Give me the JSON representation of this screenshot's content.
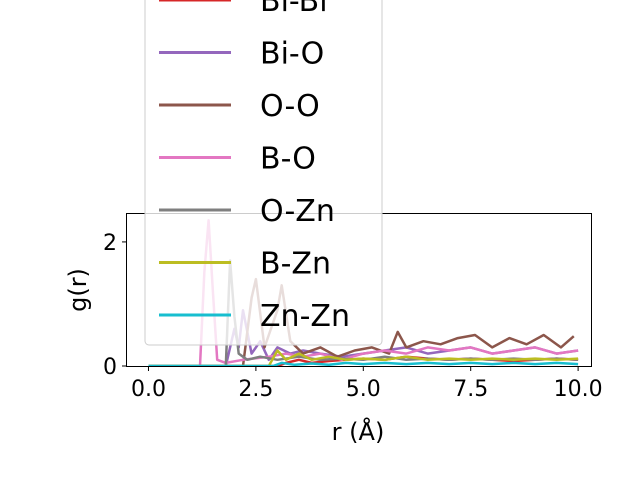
{
  "chart_data": {
    "type": "line",
    "xlabel": "r (Å)",
    "ylabel": "g(r)",
    "xlim": [
      -0.5,
      10.3
    ],
    "ylim": [
      0,
      2.45
    ],
    "xticks": [
      0.0,
      2.5,
      5.0,
      7.5,
      10.0
    ],
    "xtick_labels": [
      "0.0",
      "2.5",
      "5.0",
      "7.5",
      "10.0"
    ],
    "yticks": [
      0,
      2
    ],
    "ytick_labels": [
      "0",
      "2"
    ],
    "grid": false,
    "legend_position": "upper-left",
    "series": [
      {
        "name": "Bi-Bi",
        "color": "#d62728",
        "x": [
          0.0,
          1.0,
          2.0,
          3.0,
          3.2,
          3.5,
          3.8,
          4.2,
          4.6,
          5.0,
          5.5,
          6.0,
          6.5,
          7.0,
          7.5,
          8.0,
          8.5,
          9.0,
          9.5,
          10.0
        ],
        "y": [
          0,
          0,
          0,
          0,
          0.05,
          0.1,
          0.05,
          0.08,
          0.1,
          0.12,
          0.1,
          0.15,
          0.12,
          0.1,
          0.12,
          0.1,
          0.08,
          0.1,
          0.12,
          0.1
        ]
      },
      {
        "name": "Bi-O",
        "color": "#9467bd",
        "x": [
          0.0,
          1.8,
          2.0,
          2.1,
          2.2,
          2.4,
          2.6,
          2.8,
          3.0,
          3.3,
          3.6,
          4.0,
          4.5,
          5.0,
          5.5,
          6.0,
          6.5,
          7.0,
          7.5,
          8.0,
          8.5,
          9.0,
          9.5,
          10.0
        ],
        "y": [
          0,
          0,
          0.6,
          0.3,
          0.9,
          0.2,
          0.4,
          0.1,
          0.3,
          0.2,
          0.25,
          0.2,
          0.15,
          0.2,
          0.25,
          0.3,
          0.2,
          0.25,
          0.3,
          0.2,
          0.25,
          0.3,
          0.2,
          0.25
        ]
      },
      {
        "name": "O-O",
        "color": "#8c564b",
        "x": [
          0.0,
          2.2,
          2.4,
          2.5,
          2.7,
          3.0,
          3.1,
          3.3,
          3.6,
          4.0,
          4.4,
          4.8,
          5.2,
          5.6,
          5.8,
          6.0,
          6.4,
          6.8,
          7.2,
          7.6,
          8.0,
          8.4,
          8.8,
          9.2,
          9.6,
          9.9
        ],
        "y": [
          0,
          0,
          1.1,
          1.4,
          0.3,
          0.9,
          1.3,
          0.4,
          0.2,
          0.3,
          0.15,
          0.25,
          0.3,
          0.2,
          0.55,
          0.3,
          0.4,
          0.35,
          0.45,
          0.5,
          0.3,
          0.45,
          0.35,
          0.5,
          0.3,
          0.48
        ]
      },
      {
        "name": "B-O",
        "color": "#e377c2",
        "x": [
          0.0,
          1.2,
          1.3,
          1.4,
          1.5,
          1.6,
          1.8,
          2.2,
          2.8,
          3.2,
          3.6,
          4.0,
          4.5,
          5.0,
          5.5,
          6.0,
          6.5,
          7.0,
          7.5,
          8.0,
          8.5,
          9.0,
          9.5,
          10.0
        ],
        "y": [
          0,
          0,
          1.5,
          2.35,
          1.2,
          0.1,
          0.05,
          0.1,
          0.15,
          0.2,
          0.15,
          0.2,
          0.1,
          0.2,
          0.25,
          0.2,
          0.3,
          0.25,
          0.3,
          0.2,
          0.25,
          0.3,
          0.2,
          0.25
        ]
      },
      {
        "name": "O-Zn",
        "color": "#7f7f7f",
        "x": [
          0.0,
          1.8,
          1.9,
          2.0,
          2.1,
          2.3,
          2.6,
          3.0,
          3.5,
          4.0,
          4.5,
          5.0,
          5.5,
          6.0,
          6.5,
          7.0,
          7.5,
          8.0,
          8.5,
          9.0,
          9.5,
          10.0
        ],
        "y": [
          0,
          0,
          1.7,
          0.8,
          0.2,
          0.1,
          0.15,
          0.1,
          0.15,
          0.1,
          0.12,
          0.1,
          0.15,
          0.1,
          0.12,
          0.1,
          0.12,
          0.1,
          0.12,
          0.1,
          0.12,
          0.1
        ]
      },
      {
        "name": "B-Zn",
        "color": "#bcbd22",
        "x": [
          0.0,
          2.8,
          3.0,
          3.2,
          3.5,
          3.8,
          4.2,
          4.6,
          5.0,
          5.5,
          6.0,
          6.5,
          7.0,
          7.5,
          8.0,
          8.5,
          9.0,
          9.5,
          10.0
        ],
        "y": [
          0,
          0,
          0.25,
          0.1,
          0.2,
          0.1,
          0.15,
          0.1,
          0.12,
          0.1,
          0.15,
          0.1,
          0.12,
          0.1,
          0.12,
          0.1,
          0.12,
          0.1,
          0.12
        ]
      },
      {
        "name": "Zn-Zn",
        "color": "#17becf",
        "x": [
          0.0,
          2.9,
          3.1,
          3.4,
          3.8,
          4.2,
          4.6,
          5.0,
          5.5,
          6.0,
          6.5,
          7.0,
          7.5,
          8.0,
          8.5,
          9.0,
          9.5,
          10.0
        ],
        "y": [
          0,
          0,
          0.05,
          0.02,
          0.04,
          0.02,
          0.05,
          0.03,
          0.05,
          0.03,
          0.05,
          0.03,
          0.05,
          0.03,
          0.05,
          0.03,
          0.05,
          0.03
        ]
      }
    ]
  }
}
